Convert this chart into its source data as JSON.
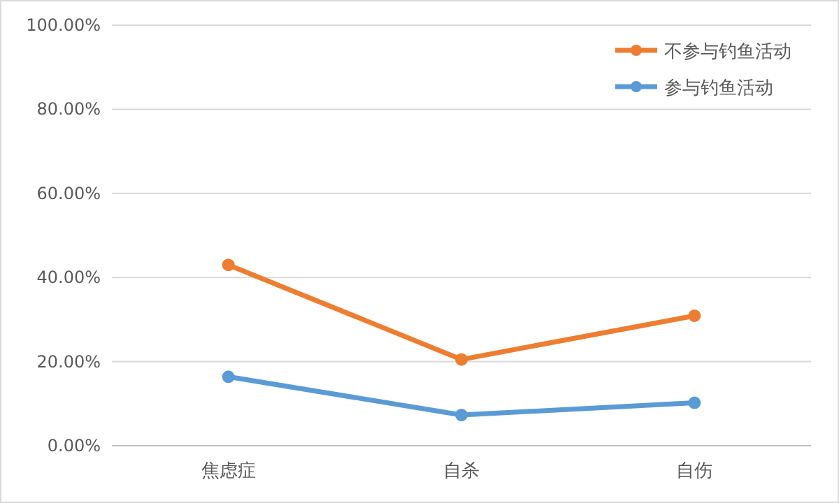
{
  "chart_data": {
    "type": "line",
    "categories": [
      "焦虑症",
      "自杀",
      "自伤"
    ],
    "series": [
      {
        "name": "不参与钓鱼活动",
        "color": "#ed7d31",
        "values": [
          43.0,
          20.5,
          30.9
        ]
      },
      {
        "name": "参与钓鱼活动",
        "color": "#5b9bd5",
        "values": [
          16.4,
          7.3,
          10.2
        ]
      }
    ],
    "ylim": [
      0,
      100
    ],
    "yticks": [
      {
        "value": 0,
        "label": "0.00%"
      },
      {
        "value": 20,
        "label": "20.00%"
      },
      {
        "value": 40,
        "label": "40.00%"
      },
      {
        "value": 60,
        "label": "60.00%"
      },
      {
        "value": 80,
        "label": "80.00%"
      },
      {
        "value": 100,
        "label": "100.00%"
      }
    ],
    "grid": "y",
    "legend": "top right",
    "marker": "circle",
    "line_style": "solid"
  }
}
